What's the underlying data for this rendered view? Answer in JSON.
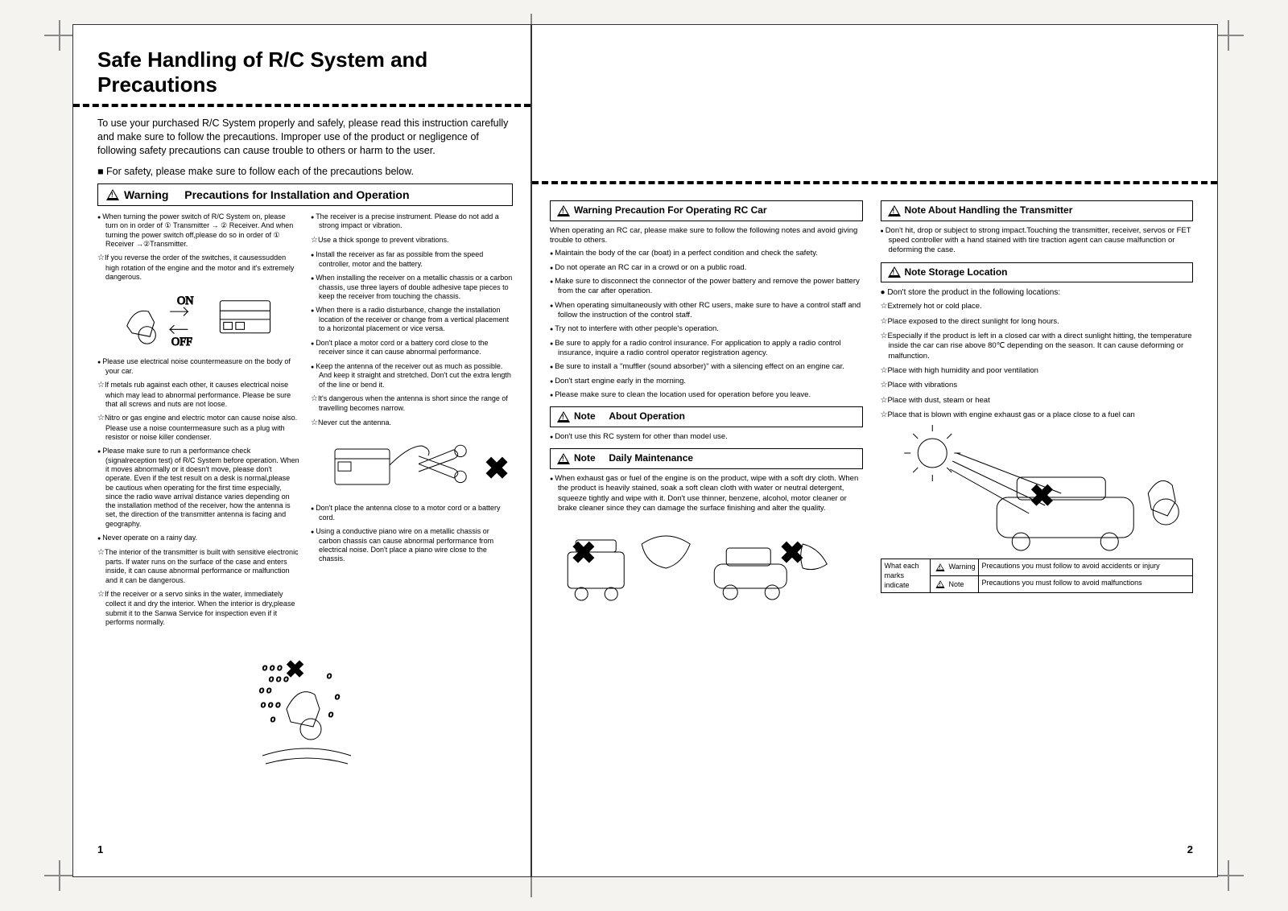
{
  "title": "Safe Handling of R/C System and Precautions",
  "intro": "To use your purchased R/C System properly and safely, please read this instruction carefully and make sure to follow the precautions. Improper use of the product or negligence of following safety precautions can cause trouble to others or harm to the user.",
  "intro_bullet": "■ For safety, please make sure to follow each of the precautions below.",
  "sec1_label": "Warning",
  "sec1_title": "Precautions for Installation and Operation",
  "left_col": [
    {
      "t": "bullet",
      "text": "When turning the power switch of R/C System on, please turn on in order of ① Transmitter → ② Receiver. And when turning the power switch off,please do so in order of ① Receiver →②Transmitter."
    },
    {
      "t": "star",
      "text": "If you reverse the order of the switches, it causessudden high rotation of the engine and the motor and it's extremely dangerous."
    },
    {
      "t": "illus",
      "kind": "power"
    },
    {
      "t": "bullet",
      "text": "Please use electrical noise countermeasure on the body of your car."
    },
    {
      "t": "star",
      "text": "If metals rub against each other, it causes electrical noise which may lead to abnormal performance. Please be sure that all screws and nuts are not loose."
    },
    {
      "t": "star",
      "text": "Nitro or gas engine and electric motor can cause noise also. Please use a noise countermeasure such as a plug with resistor or noise killer condenser."
    },
    {
      "t": "bullet",
      "text": "Please make sure to run a performance check (signalreception test) of R/C System before operation. When it moves abnormally or it doesn't move, please don't operate. Even if the test result on a desk is normal,please be cautious when operating for the first time especially, since the radio wave arrival distance varies depending on the installation method of the receiver, how the antenna is set, the direction of the transmitter antenna is facing and geography."
    },
    {
      "t": "bullet",
      "text": "Never operate on a rainy day."
    },
    {
      "t": "star",
      "text": "The interior of the transmitter is built with sensitive electronic parts. If water runs on the surface of the case and enters inside, it can cause abnormal performance or malfunction and it can be dangerous."
    },
    {
      "t": "star",
      "text": "If the receiver or a servo sinks in the water, immediately collect it and dry the interior. When the interior is dry,please submit it to the Sanwa Service for inspection even if it performs normally."
    }
  ],
  "right_col": [
    {
      "t": "bullet",
      "text": "The receiver is a precise instrument. Please do not add a strong impact or vibration."
    },
    {
      "t": "star",
      "text": "Use a thick sponge to prevent vibrations."
    },
    {
      "t": "bullet",
      "text": "Install the receiver as far as possible from the speed controller, motor and the battery."
    },
    {
      "t": "bullet",
      "text": "When installing the receiver on a metallic chassis or a carbon chassis, use three layers of double adhesive tape pieces to keep the receiver from touching the chassis."
    },
    {
      "t": "bullet",
      "text": "When there is a radio disturbance, change the installation location of the receiver or change from a vertical placement to a horizontal placement or vice versa."
    },
    {
      "t": "bullet",
      "text": "Don't place a motor cord or a battery cord close to the receiver since it can cause abnormal performance."
    },
    {
      "t": "bullet",
      "text": "Keep the antenna of the receiver out as much as possible. And keep it straight and stretched. Don't cut the extra length of the line or bend it."
    },
    {
      "t": "star",
      "text": "It's dangerous when the antenna is short since the range of travelling becomes narrow."
    },
    {
      "t": "star",
      "text": "Never cut the antenna."
    },
    {
      "t": "illus",
      "kind": "scissors"
    },
    {
      "t": "bullet",
      "text": "Don't place the antenna close to a motor cord or a battery cord."
    },
    {
      "t": "bullet",
      "text": "Using a conductive piano wire on a metallic chassis or carbon chassis can cause abnormal performance from electrical noise. Don't place a piano wire close to the chassis."
    }
  ],
  "sec2_title": "Warning Precaution For Operating RC Car",
  "sec2_intro": "When operating an RC car, please make sure to follow the following notes and avoid giving trouble to others.",
  "sec2_items": [
    {
      "t": "bullet",
      "text": "Maintain the body of the car (boat) in a perfect condition and check the safety."
    },
    {
      "t": "bullet",
      "text": "Do not operate an RC car in a crowd or on a public road."
    },
    {
      "t": "bullet",
      "text": "Make sure to disconnect the connector of the power battery and remove the power battery from the car after operation."
    },
    {
      "t": "bullet",
      "text": "When operating simultaneously with other RC users, make sure to have a control staff and follow the instruction of the control staff."
    },
    {
      "t": "bullet",
      "text": "Try not to interfere with other people's operation."
    },
    {
      "t": "bullet",
      "text": "Be sure to apply for a radio control insurance. For application to apply a radio control insurance, inquire a radio control operator registration agency."
    },
    {
      "t": "bullet",
      "text": "Be sure to install a \"muffler (sound absorber)\" with a silencing effect on an engine car."
    },
    {
      "t": "bullet",
      "text": "Don't start engine early in the morning."
    },
    {
      "t": "bullet",
      "text": "Please make sure to clean the location used for operation before you leave."
    }
  ],
  "sec3_label": "Note",
  "sec3_title": "About Operation",
  "sec3_items": [
    {
      "t": "bullet",
      "text": "Don't use this RC system for other than model use."
    }
  ],
  "sec4_title": "Daily Maintenance",
  "sec4_items": [
    {
      "t": "bullet",
      "text": "When exhaust gas or fuel of the engine is on the product, wipe with a soft dry cloth. When the product is heavily stained, soak a soft clean cloth with water or neutral detergent, squeeze tightly and wipe with it. Don't use thinner, benzene, alcohol, motor cleaner or brake cleaner since they can damage the surface finishing and alter the quality."
    }
  ],
  "sec5_title": "Note About Handling the Transmitter",
  "sec5_items": [
    {
      "t": "bullet",
      "text": "Don't hit, drop or subject to strong impact.Touching the transmitter, receiver, servos or FET speed controller with a hand stained with tire traction agent can cause malfunction or deforming the case."
    }
  ],
  "sec6_title": "Note  Storage Location",
  "sec6_intro": "Don't store the product in the following locations:",
  "sec6_items": [
    {
      "t": "star",
      "text": "Extremely hot or cold place."
    },
    {
      "t": "star",
      "text": "Place exposed to the direct sunlight for long hours."
    },
    {
      "t": "star",
      "text": "Especially if the product is left in a closed car with a direct sunlight hitting, the temperature inside the car can rise above 80℃ depending on the season. It can cause deforming or malfunction."
    },
    {
      "t": "star",
      "text": "Place with high humidity and poor ventilation"
    },
    {
      "t": "star",
      "text": "Place with vibrations"
    },
    {
      "t": "star",
      "text": "Place with dust, steam or heat"
    },
    {
      "t": "star",
      "text": "Place that is blown with engine exhaust gas or a place close to a fuel can"
    }
  ],
  "marks_box": {
    "left": "What each marks indicate",
    "r1_label": "Warning",
    "r1_text": "Precautions you must follow to avoid accidents or injury",
    "r2_label": "Note",
    "r2_text": "Precautions you must follow to avoid malfunctions"
  },
  "page_left_num": "1",
  "page_right_num": "2"
}
